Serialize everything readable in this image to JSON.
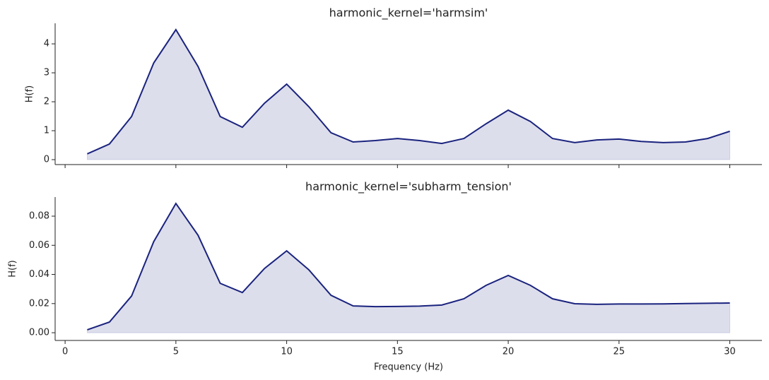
{
  "chart_data": [
    {
      "type": "area",
      "title": "harmonic_kernel='harmsim'",
      "ylabel": "H(f)",
      "color": "#1a237e",
      "x": [
        1,
        2,
        3,
        4,
        5,
        6,
        7,
        8,
        9,
        10,
        11,
        12,
        13,
        14,
        15,
        16,
        17,
        18,
        19,
        20,
        21,
        22,
        23,
        24,
        25,
        26,
        27,
        28,
        29,
        30
      ],
      "values": [
        0.2,
        0.54,
        1.49,
        3.34,
        4.49,
        3.22,
        1.49,
        1.12,
        1.95,
        2.61,
        1.83,
        0.93,
        0.61,
        0.66,
        0.73,
        0.66,
        0.56,
        0.73,
        1.24,
        1.71,
        1.32,
        0.73,
        0.59,
        0.68,
        0.71,
        0.63,
        0.59,
        0.61,
        0.73,
        0.98
      ],
      "xlim": [
        -0.45,
        31.45
      ],
      "xticks": [
        0,
        5,
        10,
        15,
        20,
        25,
        30
      ],
      "ylim": [
        -0.17,
        4.71
      ],
      "yticks": [
        0,
        1,
        2,
        3,
        4
      ]
    },
    {
      "type": "area",
      "title": "harmonic_kernel='subharm_tension'",
      "ylabel": "H(f)",
      "xlabel": "Frequency (Hz)",
      "color": "#1a237e",
      "x": [
        1,
        2,
        3,
        4,
        5,
        6,
        7,
        8,
        9,
        10,
        11,
        12,
        13,
        14,
        15,
        16,
        17,
        18,
        19,
        20,
        21,
        22,
        23,
        24,
        25,
        26,
        27,
        28,
        29,
        30
      ],
      "values": [
        0.002,
        0.0073,
        0.0252,
        0.0625,
        0.0887,
        0.0669,
        0.0339,
        0.0276,
        0.0441,
        0.0562,
        0.0432,
        0.0257,
        0.0184,
        0.0179,
        0.018,
        0.0183,
        0.019,
        0.0233,
        0.0325,
        0.0393,
        0.0325,
        0.0233,
        0.0199,
        0.0195,
        0.0197,
        0.0197,
        0.0198,
        0.02,
        0.0202,
        0.0204
      ],
      "xlim": [
        -0.45,
        31.45
      ],
      "xticks": [
        0,
        5,
        10,
        15,
        20,
        25,
        30
      ],
      "ylim": [
        -0.0053,
        0.0931
      ],
      "yticks": [
        {
          "value": 0,
          "label": "0.00"
        },
        {
          "value": 0.02,
          "label": "0.02"
        },
        {
          "value": 0.04,
          "label": "0.04"
        },
        {
          "value": 0.06,
          "label": "0.06"
        },
        {
          "value": 0.08,
          "label": "0.08"
        }
      ]
    }
  ]
}
